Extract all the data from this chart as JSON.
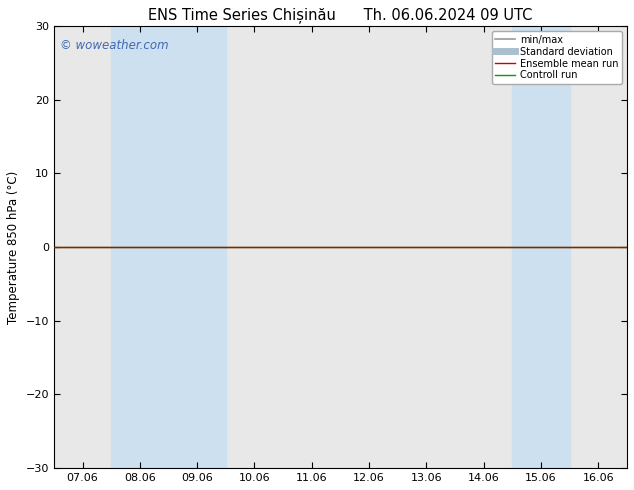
{
  "title": "ENS Time Series Chișinău      Th. 06.06.2024 09 UTC",
  "ylabel": "Temperature 850 hPa (°C)",
  "ylim": [
    -30,
    30
  ],
  "yticks": [
    -30,
    -20,
    -10,
    0,
    10,
    20,
    30
  ],
  "x_labels": [
    "07.06",
    "08.06",
    "09.06",
    "10.06",
    "11.06",
    "12.06",
    "13.06",
    "14.06",
    "15.06",
    "16.06"
  ],
  "x_values": [
    0,
    1,
    2,
    3,
    4,
    5,
    6,
    7,
    8,
    9
  ],
  "xlim": [
    -0.5,
    9.5
  ],
  "shaded_regions": [
    {
      "x_start": 0.5,
      "x_end": 2.5
    },
    {
      "x_start": 7.5,
      "x_end": 8.5
    }
  ],
  "control_run_y": 0,
  "ensemble_mean_y": 0,
  "background_color": "#ffffff",
  "plot_bg_color": "#e8e8e8",
  "shade_color": "#cce0f0",
  "watermark": "© woweather.com",
  "watermark_color": "#4169b0",
  "legend_items": [
    {
      "label": "min/max",
      "color": "#999999",
      "lw": 1.2
    },
    {
      "label": "Standard deviation",
      "color": "#aabfcf",
      "lw": 5
    },
    {
      "label": "Ensemble mean run",
      "color": "#cc0000",
      "lw": 1.0
    },
    {
      "label": "Controll run",
      "color": "#228B22",
      "lw": 1.0
    }
  ],
  "border_color": "#000000",
  "tick_label_fontsize": 8,
  "title_fontsize": 10.5,
  "ylabel_fontsize": 8.5
}
